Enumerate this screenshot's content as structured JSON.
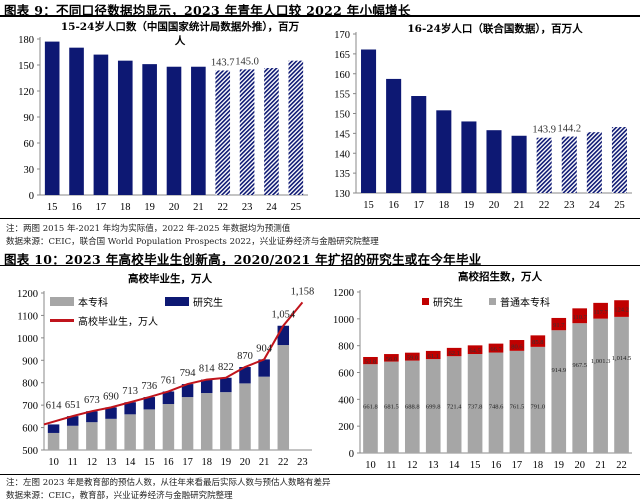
{
  "figure9": {
    "heading": "图表 9：不同口径数据均显示，2023 年青年人口较 2022 年小幅增长",
    "note": "注：两图 2015 年-2021 年均为实际值，2022 年-2025 年数据均为预测值",
    "source": "数据来源：CEIC，联合国 World Population Prospects 2022，兴业证券经济与金融研究院整理"
  },
  "figure10": {
    "heading": "图表 10：2023 年高校毕业生创新高，2020/2021 年扩招的研究生或在今年毕业",
    "note": "注：左图 2023 年是教育部的预估人数，从往年来看最后实际人数与预估人数略有差异",
    "source": "数据来源：CEIC，教育部，兴业证券经济与金融研究院整理"
  },
  "chart_data": [
    {
      "type": "bar",
      "title": "15-24岁人口数（中国国家统计局数据外推），百万人",
      "categories": [
        "15",
        "16",
        "17",
        "18",
        "19",
        "20",
        "21",
        "22",
        "23",
        "24",
        "25"
      ],
      "values": [
        177,
        170,
        162,
        155,
        151,
        148,
        148,
        143.7,
        145.0,
        146.5,
        155
      ],
      "actual_through": "21",
      "forecast_style": "hatched",
      "data_labels": {
        "22": "143.7",
        "23": "145.0"
      },
      "yticks": [
        0,
        30,
        60,
        90,
        120,
        150,
        180
      ],
      "ylim": [
        0,
        180
      ],
      "colors": {
        "bar": "#0d1873"
      }
    },
    {
      "type": "bar",
      "title": "16-24岁人口（联合国数据），百万人",
      "categories": [
        "15",
        "16",
        "17",
        "18",
        "19",
        "20",
        "21",
        "22",
        "23",
        "24",
        "25"
      ],
      "values": [
        166.1,
        158.7,
        154.4,
        150.8,
        148.0,
        145.8,
        144.4,
        143.9,
        144.2,
        145.3,
        146.6
      ],
      "actual_through": "21",
      "forecast_style": "hatched",
      "data_labels": {
        "22": "143.9",
        "23": "144.2"
      },
      "yticks": [
        130,
        135,
        140,
        145,
        150,
        155,
        160,
        165,
        170
      ],
      "ylim": [
        130,
        170
      ],
      "colors": {
        "bar": "#0d1873"
      }
    },
    {
      "type": "bar+line",
      "title": "高校毕业生，万人",
      "categories": [
        "10",
        "11",
        "12",
        "13",
        "14",
        "15",
        "16",
        "17",
        "18",
        "19",
        "20",
        "21",
        "22",
        "23"
      ],
      "series": [
        {
          "name": "本专科",
          "type": "stacked-bar",
          "values": [
            576,
            608,
            624,
            639,
            659,
            681,
            705,
            736,
            754,
            758,
            797,
            827,
            968,
            null
          ],
          "color": "#a6a6a6"
        },
        {
          "name": "研究生",
          "type": "stacked-bar",
          "values": [
            38,
            43,
            49,
            51,
            54,
            55,
            56,
            58,
            60,
            64,
            73,
            77,
            86,
            null
          ],
          "color": "#0d1873"
        },
        {
          "name": "高校毕业生，万人",
          "type": "line",
          "values": [
            614,
            651,
            673,
            690,
            713,
            736,
            761,
            794,
            814,
            822,
            870,
            904,
            1054,
            1158
          ],
          "labels": [
            "614",
            "651",
            "673",
            "690",
            "713",
            "736",
            "761",
            "794",
            "814",
            "822",
            "870",
            "904",
            "1,054",
            "1,158"
          ],
          "color": "#c0141c"
        }
      ],
      "yticks": [
        500,
        600,
        700,
        800,
        900,
        1000,
        1100,
        1200
      ],
      "ylim": [
        500,
        1200
      ],
      "legend": "top-left"
    },
    {
      "type": "stacked-bar",
      "title": "高校招生数，万人",
      "categories": [
        "10",
        "11",
        "12",
        "13",
        "14",
        "15",
        "16",
        "17",
        "18",
        "19",
        "20",
        "21",
        "22"
      ],
      "series": [
        {
          "name": "普通本专科",
          "values": [
            661.8,
            681.5,
            688.8,
            699.8,
            721.4,
            737.8,
            748.6,
            761.5,
            791.0,
            914.9,
            967.5,
            1001.3,
            1014.5
          ],
          "labels": [
            "661.8",
            "681.5",
            "688.8",
            "699.8",
            "721.4",
            "737.8",
            "748.6",
            "761.5",
            "791.0",
            "914.9",
            "967.5",
            "1,001.3",
            "1,014.5"
          ],
          "color": "#a6a6a6"
        },
        {
          "name": "研究生",
          "values": [
            53.8,
            56.0,
            59.0,
            61.1,
            62.1,
            64.5,
            66.7,
            80.6,
            85.8,
            91.7,
            110.7,
            117.7,
            124.2
          ],
          "labels": [
            "53.8",
            "56.0",
            "59.0",
            "61.1",
            "62.1",
            "64.5",
            "66.7",
            "80.6",
            "85.8",
            "91.7",
            "110.7",
            "117.7",
            "124.2"
          ],
          "color": "#c00000"
        }
      ],
      "yticks": [
        0,
        200,
        400,
        600,
        800,
        1000,
        1200
      ],
      "ylim": [
        0,
        1200
      ],
      "legend": "top"
    }
  ]
}
